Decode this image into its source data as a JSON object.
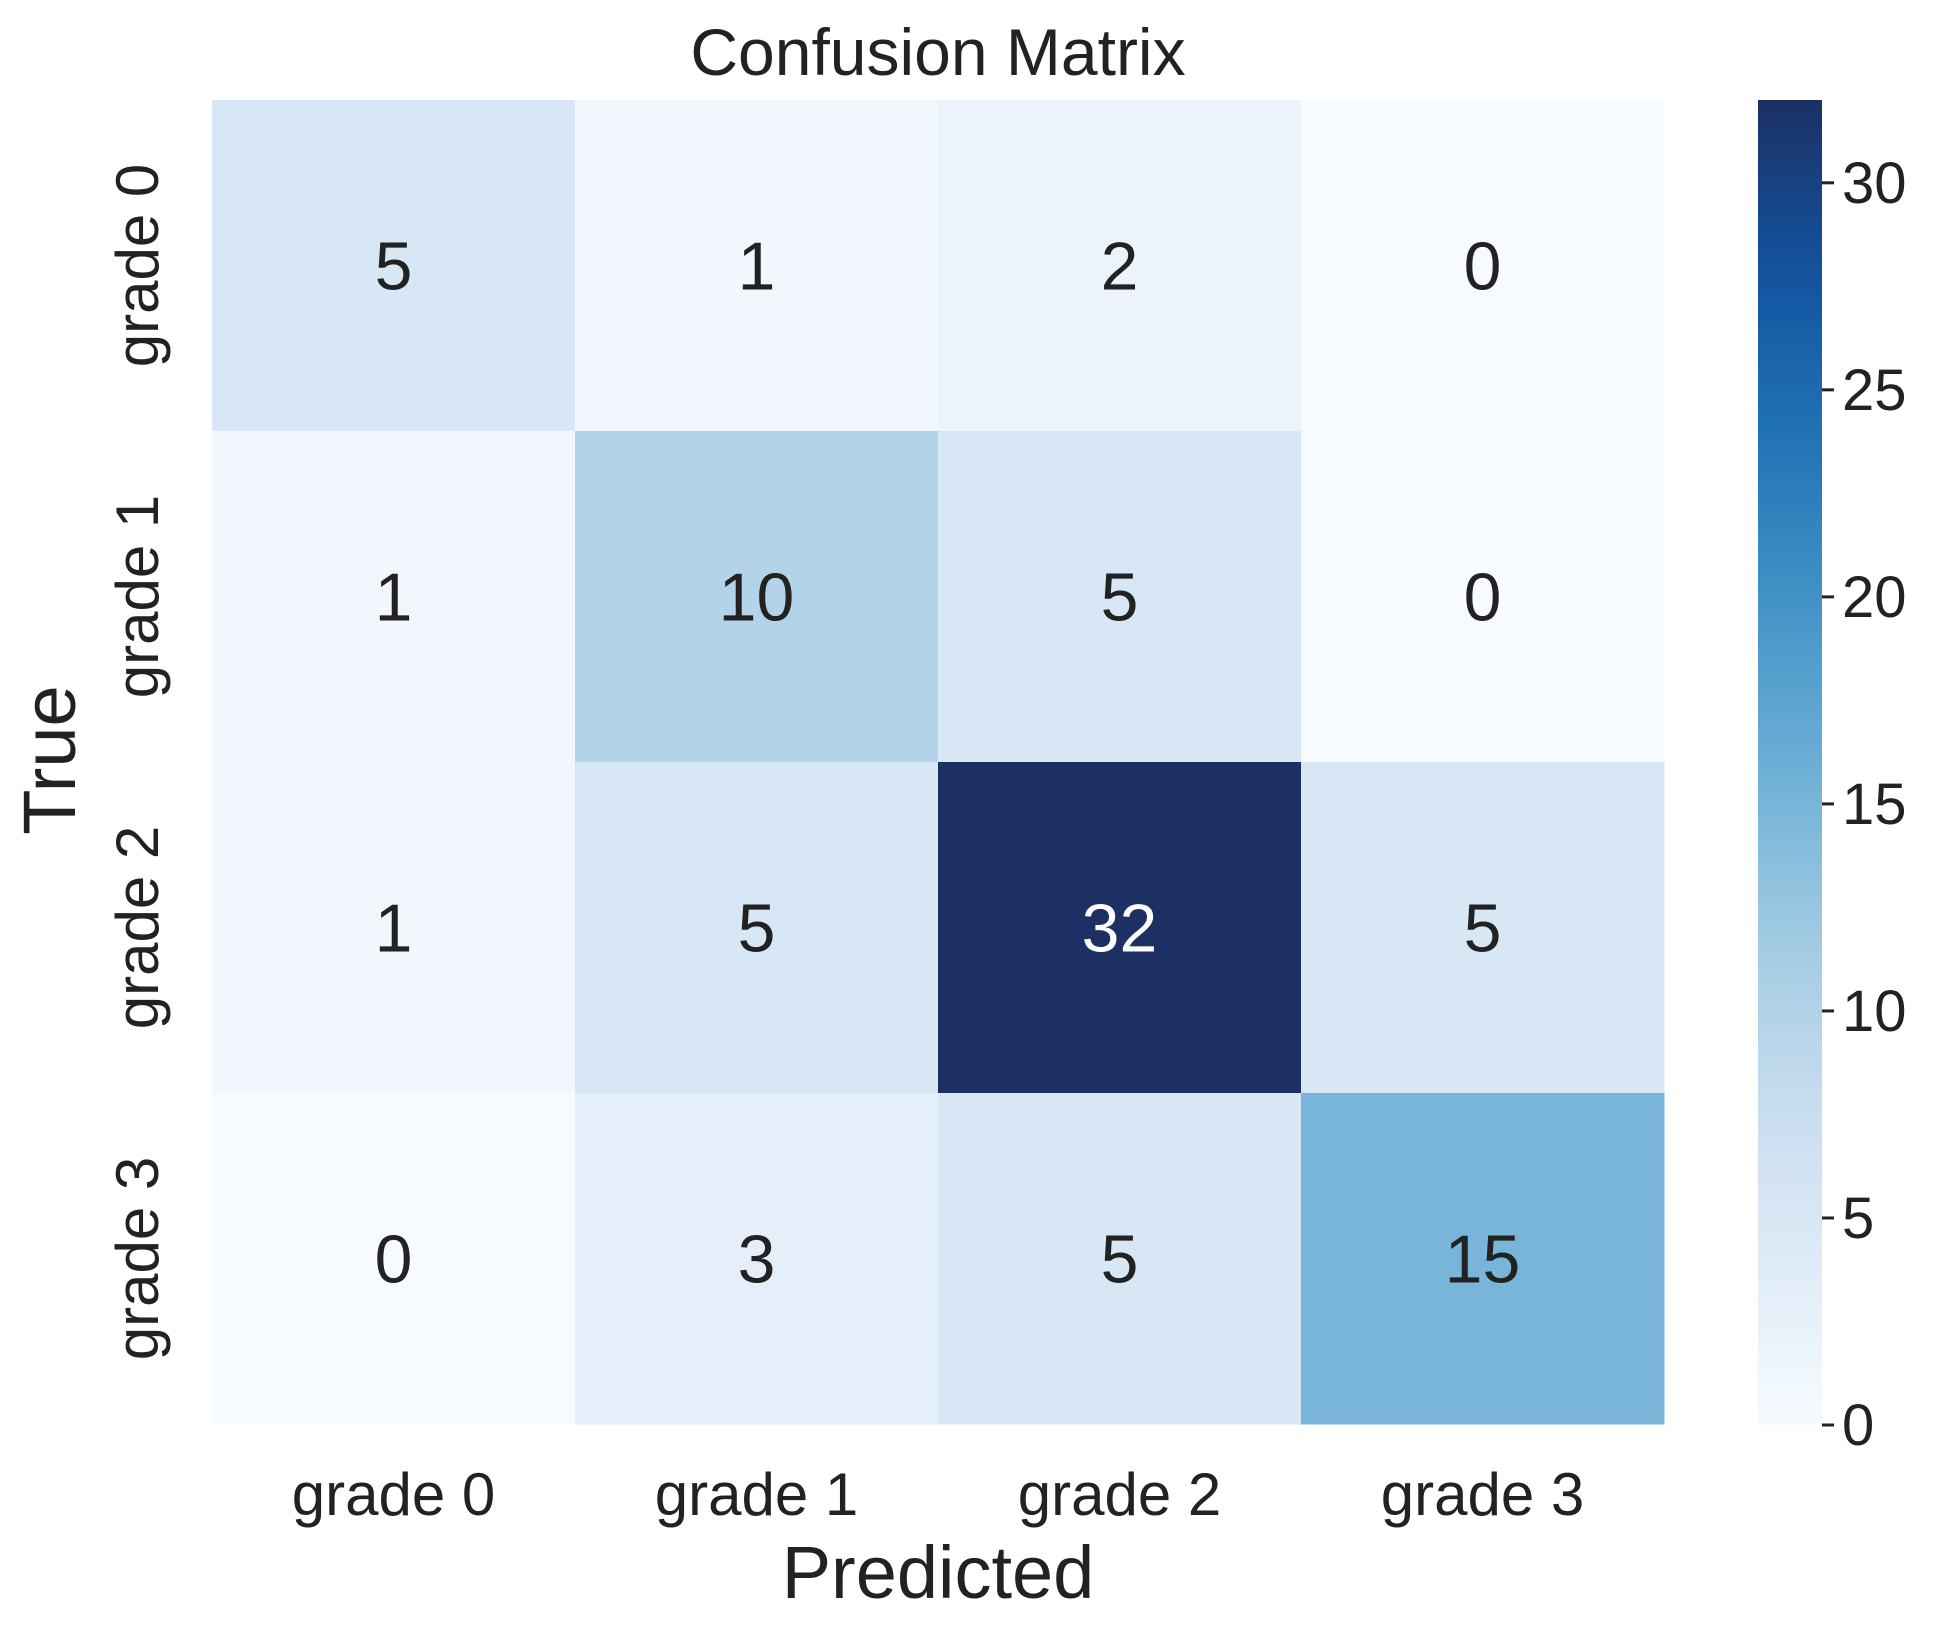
{
  "chart_data": {
    "type": "heatmap",
    "title": "Confusion Matrix",
    "xlabel": "Predicted",
    "ylabel": "True",
    "x_categories": [
      "grade 0",
      "grade 1",
      "grade 2",
      "grade 3"
    ],
    "y_categories": [
      "grade 0",
      "grade 1",
      "grade 2",
      "grade 3"
    ],
    "values": [
      [
        5,
        1,
        2,
        0
      ],
      [
        1,
        10,
        5,
        0
      ],
      [
        1,
        5,
        32,
        5
      ],
      [
        0,
        3,
        5,
        15
      ]
    ],
    "colorbar": {
      "colormap": "Blues",
      "range": [
        0,
        32
      ],
      "ticks": [
        0,
        5,
        10,
        15,
        20,
        25,
        30
      ],
      "tick_labels": [
        "0",
        "5",
        "10",
        "15",
        "20",
        "25",
        "30"
      ],
      "location": "right"
    },
    "grid": false
  }
}
